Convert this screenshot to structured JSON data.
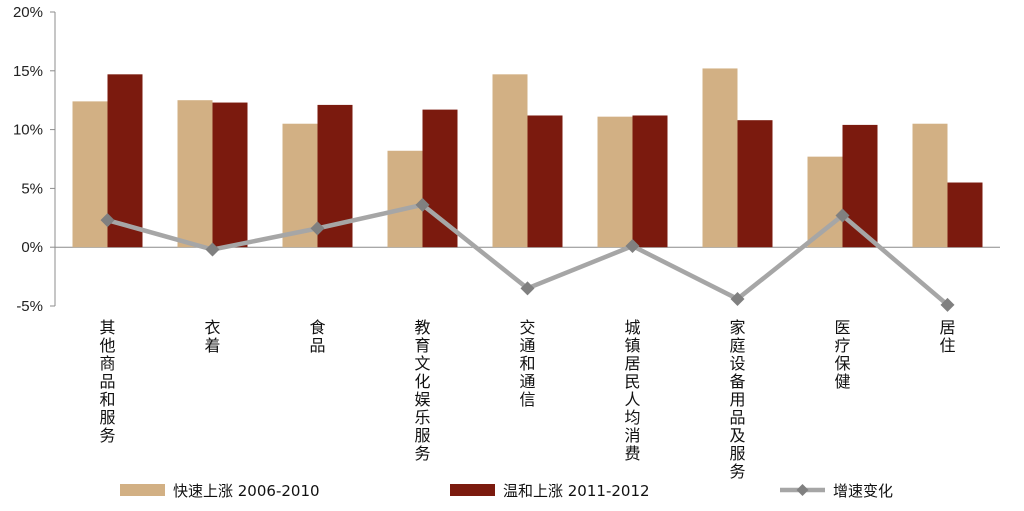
{
  "chart_data": {
    "type": "bar",
    "categories": [
      "其他商品和服务",
      "衣着",
      "食品",
      "教育文化娱乐服务",
      "交通和通信",
      "城镇居民人均消费",
      "家庭设备用品及服务",
      "医疗保健",
      "居住"
    ],
    "series": [
      {
        "name": "快速上涨 2006-2010",
        "kind": "bar",
        "color": "#D2B084",
        "values": [
          12.4,
          12.5,
          10.5,
          8.2,
          14.7,
          11.1,
          15.2,
          7.7,
          10.5
        ]
      },
      {
        "name": "温和上涨 2011-2012",
        "kind": "bar",
        "color": "#7B1A0E",
        "values": [
          14.7,
          12.3,
          12.1,
          11.7,
          11.2,
          11.2,
          10.8,
          10.4,
          5.5
        ]
      },
      {
        "name": "增速变化",
        "kind": "line",
        "color": "#A6A6A6",
        "marker_color": "#808080",
        "values": [
          2.3,
          -0.2,
          1.6,
          3.6,
          -3.5,
          0.1,
          -4.4,
          2.7,
          -4.9
        ]
      }
    ],
    "y_ticks": [
      "-5%",
      "0%",
      "5%",
      "10%",
      "15%",
      "20%"
    ],
    "ylim": [
      -5,
      20
    ],
    "title": "",
    "xlabel": "",
    "ylabel": "",
    "legend_position": "bottom",
    "grid": false
  }
}
